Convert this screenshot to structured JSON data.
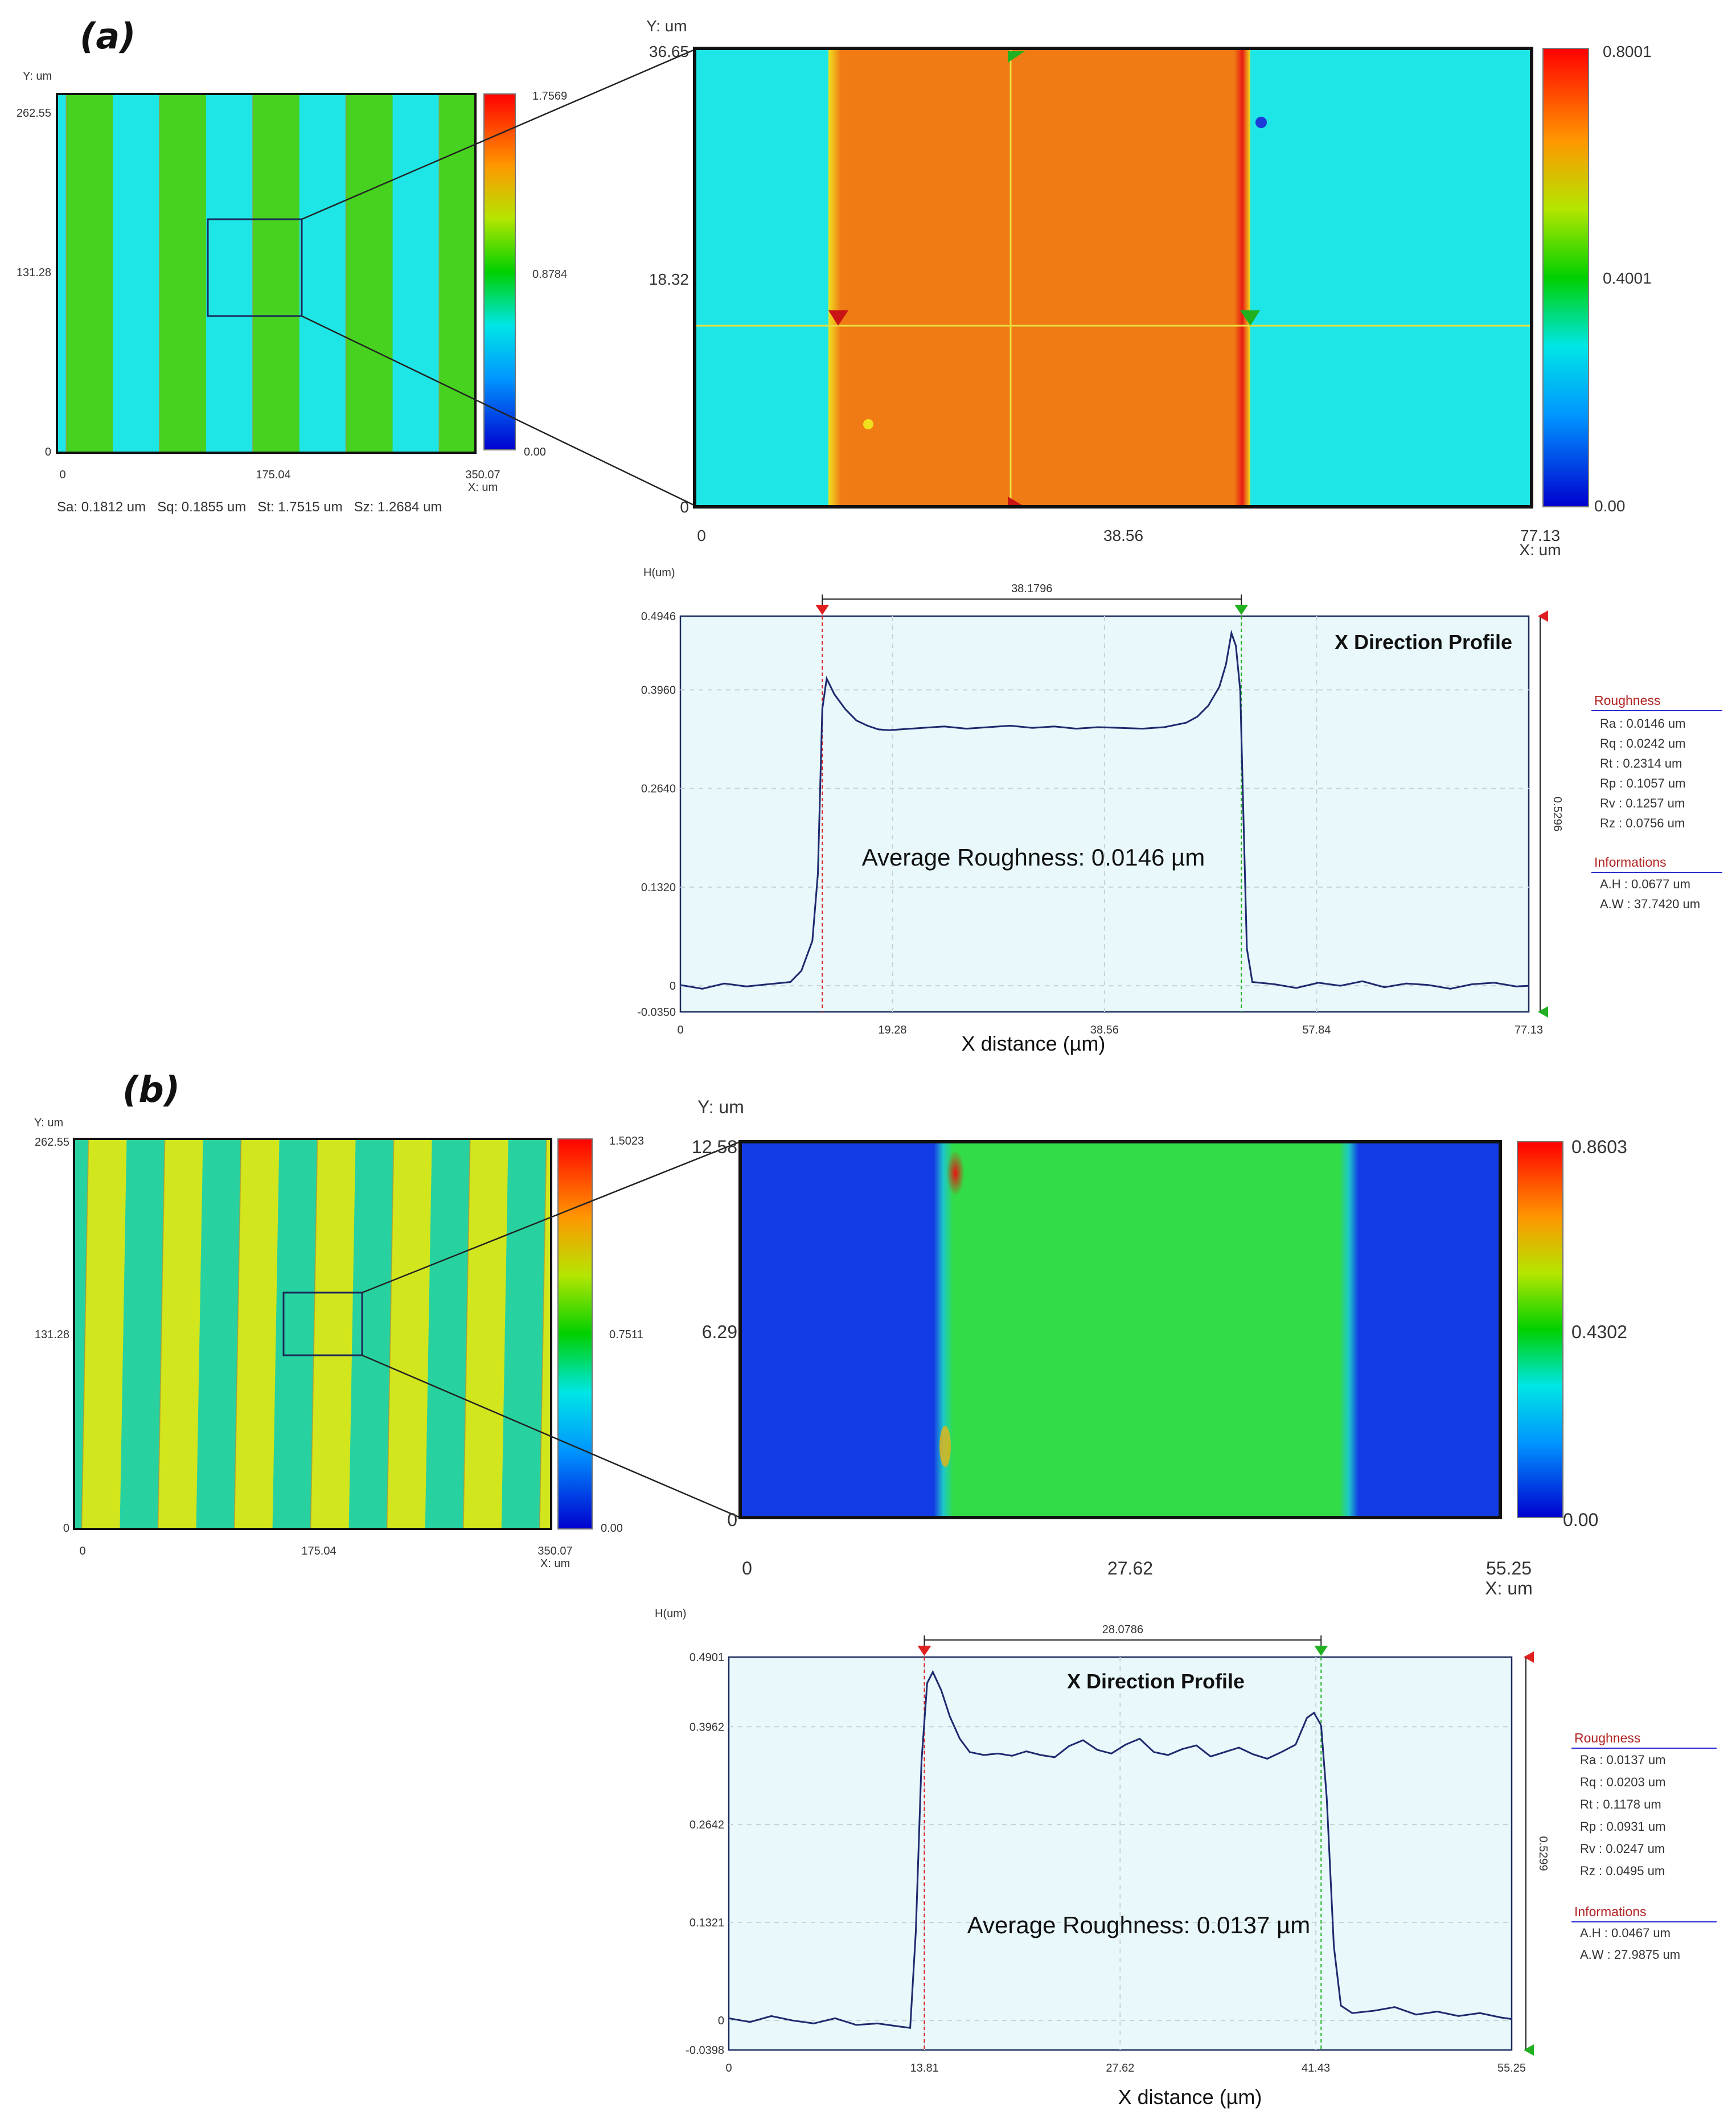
{
  "figure": {
    "panel_a_label": "(a)",
    "panel_b_label": "(b)"
  },
  "colors": {
    "green_stripe": "#46d21e",
    "cyan_stripe": "#1ee6e6",
    "orange_line": "#f07a14",
    "yellow_stripe": "#d2e61e",
    "teal_stripe": "#28d2a0",
    "blue_field": "#143ce6",
    "green_field": "#32dc46",
    "profile_bg": "#e8f8fb",
    "profile_line": "#1e2a6e",
    "marker_red": "#e02020",
    "marker_green": "#20b020"
  },
  "chart_data": [
    {
      "id": "a_overview",
      "type": "heatmap",
      "title": "",
      "ylabel": "Y: um",
      "xlabel": "X: um",
      "x_ticks": [
        "0",
        "175.04",
        "350.07"
      ],
      "y_ticks": [
        "262.55",
        "131.28",
        "0"
      ],
      "colorbar_ticks": [
        "1.7569",
        "0.8784",
        "0.00"
      ],
      "xlim": [
        0,
        350.07
      ],
      "ylim": [
        0,
        262.55
      ],
      "stripe_period_um": 78,
      "stats_text": "Sa: 0.1812 um   Sq: 0.1855 um   St: 1.7515 um   Sz: 1.2684 um"
    },
    {
      "id": "a_zoom",
      "type": "heatmap",
      "ylabel": "Y: um",
      "xlabel": "X: um",
      "x_ticks": [
        "0",
        "38.56",
        "77.13"
      ],
      "y_ticks": [
        "36.65",
        "18.32",
        "0"
      ],
      "colorbar_ticks": [
        "0.8001",
        "0.4001",
        "0.00"
      ],
      "xlim": [
        0,
        77.13
      ],
      "ylim": [
        0,
        36.65
      ],
      "line_x_range_um": [
        13.4,
        51.6
      ]
    },
    {
      "id": "a_profile",
      "type": "line",
      "title": "X Direction Profile",
      "ylabel": "H(um)",
      "xlabel": "X distance (µm)",
      "xlim": [
        0,
        77.13
      ],
      "ylim": [
        -0.035,
        0.4946
      ],
      "x_ticks": [
        "0",
        "19.28",
        "38.56",
        "57.84",
        "77.13"
      ],
      "y_ticks": [
        "0.4946",
        "0.3960",
        "0.2640",
        "0.1320",
        "0",
        "-0.0350"
      ],
      "width_label": "38.1796",
      "height_label": "0.5296",
      "annotation": "Average Roughness: 0.0146 µm",
      "markers_x": [
        12.9,
        51.0
      ],
      "x": [
        0,
        2,
        4,
        6,
        8,
        10,
        11,
        12,
        12.5,
        12.9,
        13.3,
        14,
        15,
        16,
        17,
        18,
        19,
        20,
        22,
        24,
        26,
        28,
        30,
        32,
        34,
        36,
        38,
        40,
        42,
        44,
        46,
        47,
        48,
        49,
        49.6,
        50.1,
        50.5,
        50.9,
        51.2,
        51.5,
        52,
        54,
        56,
        58,
        60,
        62,
        64,
        66,
        68,
        70,
        72,
        74,
        76,
        77.13
      ],
      "values": [
        0.001,
        -0.004,
        0.003,
        -0.001,
        0.002,
        0.005,
        0.02,
        0.06,
        0.15,
        0.37,
        0.411,
        0.39,
        0.37,
        0.355,
        0.348,
        0.343,
        0.342,
        0.343,
        0.345,
        0.347,
        0.344,
        0.346,
        0.348,
        0.345,
        0.347,
        0.344,
        0.346,
        0.345,
        0.344,
        0.346,
        0.352,
        0.36,
        0.375,
        0.4,
        0.43,
        0.472,
        0.455,
        0.395,
        0.22,
        0.05,
        0.005,
        0.002,
        -0.003,
        0.004,
        0.0,
        0.006,
        -0.002,
        0.003,
        0.001,
        -0.004,
        0.002,
        0.004,
        -0.001,
        0.0
      ],
      "roughness_header": "Roughness",
      "roughness": [
        "Ra : 0.0146 um",
        "Rq : 0.0242 um",
        "Rt : 0.2314 um",
        "Rp : 0.1057 um",
        "Rv : 0.1257 um",
        "Rz : 0.0756 um"
      ],
      "info_header": "Informations",
      "info": [
        "A.H : 0.0677 um",
        "A.W : 37.7420 um"
      ]
    },
    {
      "id": "b_overview",
      "type": "heatmap",
      "ylabel": "Y: um",
      "xlabel": "X: um",
      "x_ticks": [
        "0",
        "175.04",
        "350.07"
      ],
      "y_ticks": [
        "262.55",
        "131.28",
        "0"
      ],
      "colorbar_ticks": [
        "1.5023",
        "0.7511",
        "0.00"
      ],
      "xlim": [
        0,
        350.07
      ],
      "ylim": [
        0,
        262.55
      ],
      "stripe_period_um": 56
    },
    {
      "id": "b_zoom",
      "type": "heatmap",
      "ylabel": "Y: um",
      "xlabel": "X: um",
      "x_ticks": [
        "0",
        "27.62",
        "55.25"
      ],
      "y_ticks": [
        "12.58",
        "6.29",
        "0"
      ],
      "colorbar_ticks": [
        "0.8603",
        "0.4302",
        "0.00"
      ],
      "xlim": [
        0,
        55.25
      ],
      "ylim": [
        0,
        12.58
      ],
      "line_x_range_um": [
        13.2,
        43.0
      ]
    },
    {
      "id": "b_profile",
      "type": "line",
      "title": "X Direction Profile",
      "ylabel": "H(um)",
      "xlabel": "X distance (µm)",
      "xlim": [
        0,
        55.25
      ],
      "ylim": [
        -0.0398,
        0.4901
      ],
      "x_ticks": [
        "0",
        "13.81",
        "27.62",
        "41.43",
        "55.25"
      ],
      "y_ticks": [
        "0.4901",
        "0.3962",
        "0.2642",
        "0.1321",
        "0",
        "-0.0398"
      ],
      "width_label": "28.0786",
      "height_label": "0.5299",
      "annotation": "Average Roughness: 0.0137 µm",
      "markers_x": [
        13.8,
        41.8
      ],
      "x": [
        0,
        1.5,
        3,
        4.5,
        6,
        7.5,
        9,
        10.5,
        12,
        12.8,
        13.2,
        13.6,
        14.0,
        14.4,
        15,
        15.6,
        16.3,
        17,
        18,
        19,
        20,
        21,
        22,
        23,
        24,
        25,
        26,
        27,
        28,
        29,
        30,
        31,
        32,
        33,
        34,
        35,
        36,
        37,
        38,
        39,
        40,
        40.8,
        41.3,
        41.8,
        42.2,
        42.7,
        43.2,
        44,
        45.5,
        47,
        48.5,
        50,
        51.5,
        53,
        54.5,
        55.25
      ],
      "values": [
        0.003,
        -0.002,
        0.006,
        0.0,
        -0.004,
        0.003,
        -0.006,
        -0.004,
        -0.008,
        -0.01,
        0.12,
        0.35,
        0.455,
        0.47,
        0.445,
        0.41,
        0.38,
        0.362,
        0.358,
        0.36,
        0.357,
        0.363,
        0.358,
        0.355,
        0.37,
        0.378,
        0.365,
        0.36,
        0.372,
        0.38,
        0.362,
        0.358,
        0.366,
        0.371,
        0.356,
        0.362,
        0.368,
        0.359,
        0.353,
        0.362,
        0.372,
        0.408,
        0.415,
        0.398,
        0.3,
        0.1,
        0.02,
        0.01,
        0.013,
        0.018,
        0.008,
        0.012,
        0.006,
        0.01,
        0.004,
        0.002
      ],
      "roughness_header": "Roughness",
      "roughness": [
        "Ra : 0.0137 um",
        "Rq : 0.0203 um",
        "Rt : 0.1178 um",
        "Rp : 0.0931 um",
        "Rv : 0.0247 um",
        "Rz : 0.0495 um"
      ],
      "info_header": "Informations",
      "info": [
        "A.H : 0.0467 um",
        "A.W : 27.9875 um"
      ]
    }
  ]
}
